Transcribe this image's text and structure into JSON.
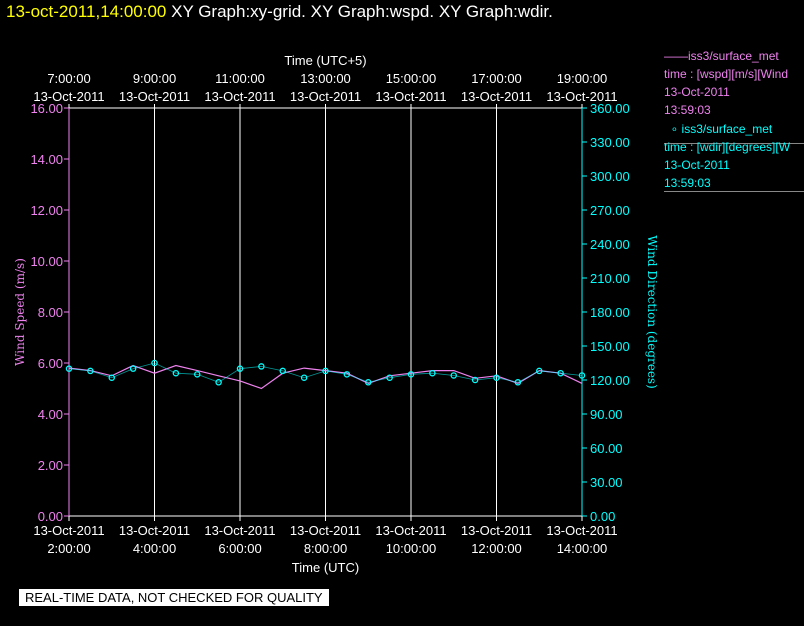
{
  "header": {
    "timestamp": "13-oct-2011,14:00:00",
    "graphs": "XY Graph:xy-grid.  XY Graph:wspd.  XY Graph:wdir."
  },
  "legend": {
    "wspd": {
      "title": "iss3/surface_met",
      "line1": "time : [wspd][m/s][Wind",
      "date": "13-Oct-2011",
      "time": "13:59:03"
    },
    "wdir": {
      "title": "iss3/surface_met",
      "line1": "time : [wdir][degrees][W",
      "date": "13-Oct-2011",
      "time": "13:59:03"
    }
  },
  "banner": "REAL-TIME DATA, NOT CHECKED FOR QUALITY",
  "colors": {
    "wspd": "#ee82ee",
    "wdir": "#00ffff",
    "grid": "#ffffff",
    "axis_left": "#ee82ee",
    "axis_right": "#00ffff"
  },
  "chart_data": {
    "type": "line",
    "title": "",
    "xlabel": "Time (UTC)",
    "x2label": "Time (UTC+5)",
    "x_ticks_bottom": [
      {
        "date": "13-Oct-2011",
        "time": "2:00:00"
      },
      {
        "date": "13-Oct-2011",
        "time": "4:00:00"
      },
      {
        "date": "13-Oct-2011",
        "time": "6:00:00"
      },
      {
        "date": "13-Oct-2011",
        "time": "8:00:00"
      },
      {
        "date": "13-Oct-2011",
        "time": "10:00:00"
      },
      {
        "date": "13-Oct-2011",
        "time": "12:00:00"
      },
      {
        "date": "13-Oct-2011",
        "time": "14:00:00"
      }
    ],
    "x_ticks_top": [
      {
        "time": "7:00:00",
        "date": "13-Oct-2011"
      },
      {
        "time": "9:00:00",
        "date": "13-Oct-2011"
      },
      {
        "time": "11:00:00",
        "date": "13-Oct-2011"
      },
      {
        "time": "13:00:00",
        "date": "13-Oct-2011"
      },
      {
        "time": "15:00:00",
        "date": "13-Oct-2011"
      },
      {
        "time": "17:00:00",
        "date": "13-Oct-2011"
      },
      {
        "time": "19:00:00",
        "date": "13-Oct-2011"
      }
    ],
    "xlim": [
      "2011-10-13 02:00",
      "2011-10-13 14:00"
    ],
    "grid": true,
    "y_left": {
      "label": "Wind Speed (m/s)",
      "ylim": [
        0,
        16
      ],
      "ticks": [
        "0.00",
        "2.00",
        "4.00",
        "6.00",
        "8.00",
        "10.00",
        "12.00",
        "14.00",
        "16.00"
      ]
    },
    "y_right": {
      "label": "Wind Direction (degrees)",
      "ylim": [
        0,
        360
      ],
      "ticks": [
        "0.00",
        "30.00",
        "60.00",
        "90.00",
        "120.00",
        "150.00",
        "180.00",
        "210.00",
        "240.00",
        "270.00",
        "300.00",
        "330.00",
        "360.00"
      ]
    },
    "series": [
      {
        "name": "iss3/surface_met wspd",
        "axis": "left",
        "style": "line",
        "x": [
          "02:00",
          "02:30",
          "03:00",
          "03:30",
          "04:00",
          "04:30",
          "05:00",
          "05:30",
          "06:00",
          "06:30",
          "07:00",
          "07:30",
          "08:00",
          "08:30",
          "09:00",
          "09:30",
          "10:00",
          "10:30",
          "11:00",
          "11:30",
          "12:00",
          "12:30",
          "13:00",
          "13:30",
          "14:00"
        ],
        "y": [
          5.8,
          5.7,
          5.5,
          5.9,
          5.6,
          5.9,
          5.7,
          5.5,
          5.3,
          5.0,
          5.6,
          5.8,
          5.7,
          5.6,
          5.2,
          5.5,
          5.6,
          5.7,
          5.7,
          5.4,
          5.5,
          5.2,
          5.7,
          5.6,
          5.2
        ]
      },
      {
        "name": "iss3/surface_met wdir",
        "axis": "right",
        "style": "markers",
        "x": [
          "02:00",
          "02:30",
          "03:00",
          "03:30",
          "04:00",
          "04:30",
          "05:00",
          "05:30",
          "06:00",
          "06:30",
          "07:00",
          "07:30",
          "08:00",
          "08:30",
          "09:00",
          "09:30",
          "10:00",
          "10:30",
          "11:00",
          "11:30",
          "12:00",
          "12:30",
          "13:00",
          "13:30",
          "14:00"
        ],
        "y": [
          130,
          128,
          122,
          130,
          135,
          126,
          125,
          118,
          130,
          132,
          128,
          122,
          128,
          125,
          118,
          122,
          125,
          126,
          124,
          120,
          122,
          118,
          128,
          126,
          124
        ]
      }
    ]
  }
}
